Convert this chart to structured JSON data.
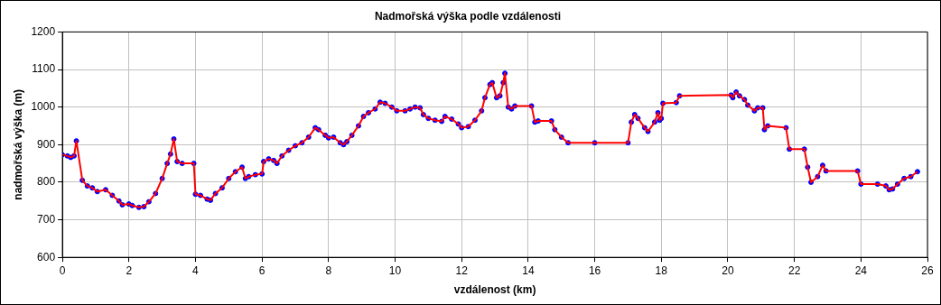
{
  "chart_data": {
    "type": "line",
    "title": "Nadmořská výška podle vzdálenosti",
    "xlabel": "vzdálenost (km)",
    "ylabel": "nadmořská výška (m)",
    "x": [
      0,
      0.15,
      0.25,
      0.35,
      0.42,
      0.6,
      0.75,
      0.9,
      1.05,
      1.3,
      1.5,
      1.7,
      1.8,
      2.0,
      2.1,
      2.3,
      2.45,
      2.6,
      2.8,
      3.0,
      3.15,
      3.25,
      3.35,
      3.45,
      3.6,
      3.95,
      4.0,
      4.15,
      4.35,
      4.45,
      4.6,
      4.8,
      5.0,
      5.2,
      5.4,
      5.5,
      5.6,
      5.8,
      6.0,
      6.05,
      6.2,
      6.35,
      6.45,
      6.6,
      6.8,
      7.0,
      7.2,
      7.4,
      7.6,
      7.7,
      7.9,
      8.0,
      8.15,
      8.35,
      8.45,
      8.55,
      8.7,
      8.9,
      9.05,
      9.2,
      9.4,
      9.55,
      9.7,
      9.9,
      10.05,
      10.3,
      10.45,
      10.6,
      10.75,
      10.85,
      11.0,
      11.2,
      11.4,
      11.5,
      11.7,
      11.9,
      12.0,
      12.2,
      12.4,
      12.6,
      12.7,
      12.85,
      12.92,
      13.05,
      13.15,
      13.25,
      13.3,
      13.4,
      13.5,
      13.6,
      14.1,
      14.2,
      14.3,
      14.7,
      14.8,
      15.0,
      15.2,
      16.0,
      17.0,
      17.1,
      17.2,
      17.3,
      17.5,
      17.6,
      17.8,
      17.9,
      17.95,
      18.0,
      18.05,
      18.45,
      18.55,
      20.1,
      20.15,
      20.25,
      20.35,
      20.5,
      20.6,
      20.8,
      20.9,
      21.05,
      21.1,
      21.2,
      21.75,
      21.85,
      22.3,
      22.4,
      22.5,
      22.7,
      22.85,
      22.95,
      23.9,
      24.0,
      24.5,
      24.75,
      24.85,
      24.95,
      25.1,
      25.3,
      25.5,
      25.7
    ],
    "series": [
      {
        "color": "#ff0000",
        "marker": "none",
        "values": [
          873,
          870,
          866,
          870,
          910,
          805,
          790,
          785,
          775,
          780,
          765,
          750,
          740,
          742,
          738,
          733,
          735,
          748,
          770,
          810,
          850,
          875,
          915,
          855,
          850,
          850,
          768,
          765,
          755,
          752,
          770,
          785,
          810,
          828,
          840,
          810,
          815,
          820,
          822,
          855,
          862,
          858,
          850,
          870,
          885,
          897,
          905,
          920,
          945,
          940,
          925,
          918,
          920,
          905,
          900,
          908,
          925,
          950,
          975,
          985,
          995,
          1013,
          1010,
          1000,
          990,
          990,
          995,
          1000,
          998,
          980,
          970,
          965,
          962,
          975,
          968,
          955,
          945,
          948,
          965,
          990,
          1025,
          1060,
          1065,
          1025,
          1030,
          1065,
          1090,
          1000,
          995,
          1003,
          1003,
          960,
          963,
          963,
          940,
          920,
          905,
          905,
          905,
          960,
          980,
          970,
          945,
          935,
          960,
          985,
          965,
          970,
          1010,
          1012,
          1030,
          1032,
          1025,
          1040,
          1030,
          1020,
          1005,
          990,
          998,
          998,
          940,
          950,
          945,
          888,
          888,
          840,
          800,
          815,
          845,
          830,
          830,
          795,
          795,
          790,
          780,
          782,
          795,
          810,
          815,
          828
        ]
      },
      {
        "type": "scatter",
        "color": "#0000ff",
        "marker": "circle",
        "values": [
          873,
          870,
          866,
          870,
          910,
          805,
          790,
          785,
          775,
          780,
          765,
          750,
          740,
          742,
          738,
          733,
          735,
          748,
          770,
          810,
          850,
          875,
          915,
          855,
          850,
          850,
          768,
          765,
          755,
          752,
          770,
          785,
          810,
          828,
          840,
          810,
          815,
          820,
          822,
          855,
          862,
          858,
          850,
          870,
          885,
          897,
          905,
          920,
          945,
          940,
          925,
          918,
          920,
          905,
          900,
          908,
          925,
          950,
          975,
          985,
          995,
          1013,
          1010,
          1000,
          990,
          990,
          995,
          1000,
          998,
          980,
          970,
          965,
          962,
          975,
          968,
          955,
          945,
          948,
          965,
          990,
          1025,
          1060,
          1065,
          1025,
          1030,
          1065,
          1090,
          1000,
          995,
          1003,
          1003,
          960,
          963,
          963,
          940,
          920,
          905,
          905,
          905,
          960,
          980,
          970,
          945,
          935,
          960,
          985,
          965,
          970,
          1010,
          1012,
          1030,
          1032,
          1025,
          1040,
          1030,
          1020,
          1005,
          990,
          998,
          998,
          940,
          950,
          945,
          888,
          888,
          840,
          800,
          815,
          845,
          830,
          830,
          795,
          795,
          790,
          780,
          782,
          795,
          810,
          815,
          828
        ]
      }
    ],
    "xlim": [
      0,
      26
    ],
    "xticks": [
      0,
      2,
      4,
      6,
      8,
      10,
      12,
      14,
      16,
      18,
      20,
      22,
      24,
      26
    ],
    "ylim": [
      600,
      1200
    ],
    "yticks": [
      600,
      700,
      800,
      900,
      1000,
      1100,
      1200
    ],
    "grid": true,
    "legend": false
  }
}
